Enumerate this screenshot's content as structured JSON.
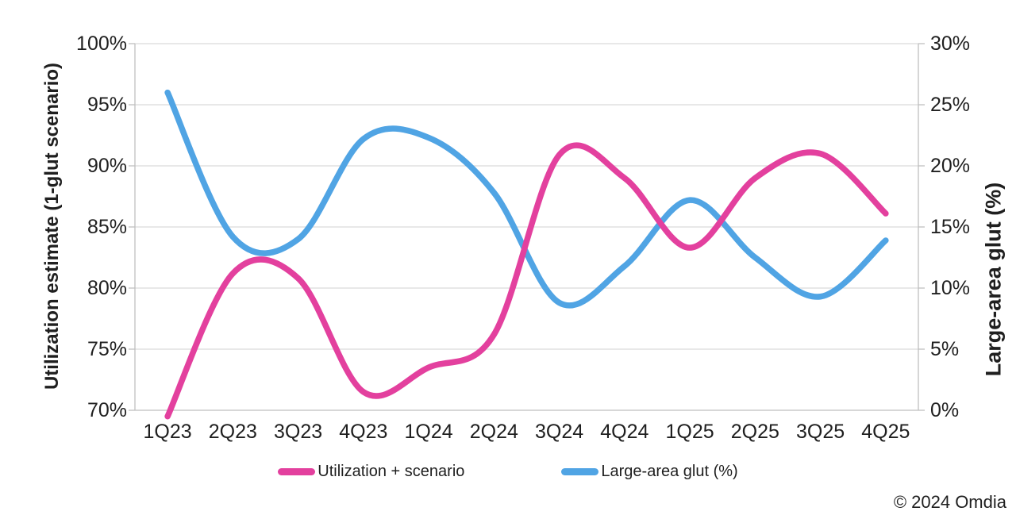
{
  "chart_data": {
    "type": "line",
    "title": "",
    "categories": [
      "1Q23",
      "2Q23",
      "3Q23",
      "4Q23",
      "1Q24",
      "2Q24",
      "3Q24",
      "4Q24",
      "1Q25",
      "2Q25",
      "3Q25",
      "4Q25"
    ],
    "series": [
      {
        "name": "Utilization + scenario",
        "axis": "left",
        "color": "#E3409E",
        "values": [
          69.5,
          81.2,
          80.8,
          71.5,
          73.5,
          76.2,
          90.9,
          89.0,
          83.3,
          89.0,
          91.0,
          86.1
        ]
      },
      {
        "name": "Large-area glut (%)",
        "axis": "right",
        "color": "#50A4E4",
        "values": [
          26.0,
          14.2,
          14.0,
          22.2,
          22.3,
          17.8,
          8.8,
          11.8,
          17.2,
          12.5,
          9.3,
          13.9
        ]
      }
    ],
    "left_axis": {
      "title": "Utilization estimate (1-glut scenario)",
      "min": 70,
      "max": 100,
      "ticks": [
        "100%",
        "95%",
        "90%",
        "85%",
        "80%",
        "75%",
        "70%"
      ]
    },
    "right_axis": {
      "title": "Large-area glut (%)",
      "min": 0,
      "max": 30,
      "ticks": [
        "30%",
        "25%",
        "20%",
        "15%",
        "10%",
        "5%",
        "0%"
      ]
    },
    "grid": true,
    "legend_position": "bottom",
    "smooth": true
  },
  "legend": {
    "items": [
      {
        "label": "Utilization + scenario",
        "color": "#E3409E"
      },
      {
        "label": "Large-area glut (%)",
        "color": "#50A4E4"
      }
    ]
  },
  "footer": {
    "credit": "© 2024 Omdia"
  },
  "style_colors": {
    "gridline": "#D9D9D9",
    "axis": "#BFBFBF",
    "text": "#1f1f1f"
  }
}
